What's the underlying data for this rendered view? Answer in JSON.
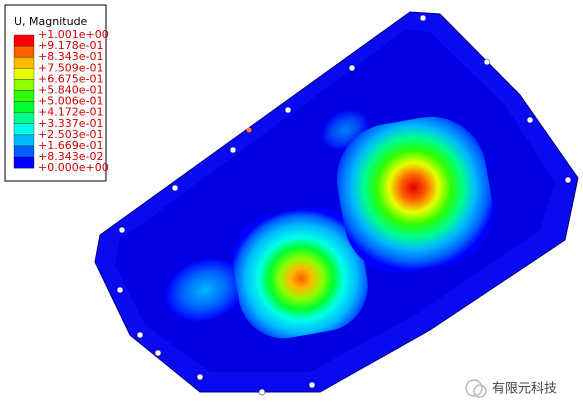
{
  "legend": {
    "title": "U, Magnitude",
    "labels": [
      "+1.001e+00",
      "+9.178e-01",
      "+8.343e-01",
      "+7.509e-01",
      "+6.675e-01",
      "+5.840e-01",
      "+5.006e-01",
      "+4.172e-01",
      "+3.337e-01",
      "+2.503e-01",
      "+1.669e-01",
      "+8.343e-02",
      "+0.000e+00"
    ],
    "colors": [
      "#ff0000",
      "#ff5d00",
      "#ffb900",
      "#e8ff00",
      "#8bff00",
      "#2eff00",
      "#00ff2e",
      "#00ff8b",
      "#00ffe8",
      "#00b9ff",
      "#005dff",
      "#0000ff"
    ]
  },
  "watermark": "有限元科技"
}
